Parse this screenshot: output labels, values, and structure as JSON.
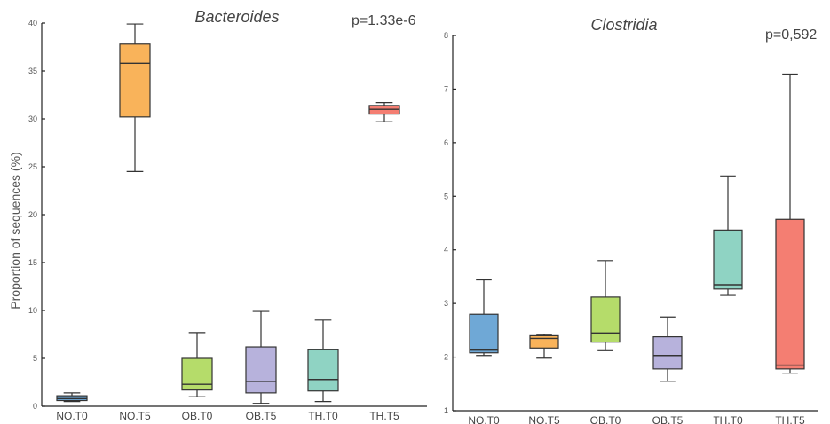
{
  "chart_data": [
    {
      "type": "box",
      "title": "Bacteroides",
      "annotation": "p=1.33e-6",
      "ylabel": "Proportion of sequences (%)",
      "ylim": [
        0,
        40
      ],
      "yticks": [
        0,
        5,
        10,
        15,
        20,
        25,
        30,
        35,
        40
      ],
      "categories": [
        "NO.T0",
        "NO.T5",
        "OB.T0",
        "OB.T5",
        "TH.T0",
        "TH.T5"
      ],
      "colors": [
        "#6fa8d6",
        "#f9b35a",
        "#b5dc6a",
        "#b7b2dc",
        "#8fd3c3",
        "#f47e72"
      ],
      "boxes": [
        {
          "min": 0.5,
          "q1": 0.6,
          "median": 0.8,
          "q3": 1.1,
          "max": 1.4
        },
        {
          "min": 24.5,
          "q1": 30.2,
          "median": 35.8,
          "q3": 37.8,
          "max": 39.9
        },
        {
          "min": 1.0,
          "q1": 1.7,
          "median": 2.3,
          "q3": 5.0,
          "max": 7.7
        },
        {
          "min": 0.3,
          "q1": 1.4,
          "median": 2.6,
          "q3": 6.2,
          "max": 9.9
        },
        {
          "min": 0.5,
          "q1": 1.6,
          "median": 2.8,
          "q3": 5.9,
          "max": 9.0
        },
        {
          "min": 29.7,
          "q1": 30.5,
          "median": 31.0,
          "q3": 31.4,
          "max": 31.7
        }
      ]
    },
    {
      "type": "box",
      "title": "Clostridia",
      "annotation": "p=0,592",
      "ylabel": "",
      "ylim": [
        1,
        8
      ],
      "yticks": [
        1,
        2,
        3,
        4,
        5,
        6,
        7,
        8
      ],
      "categories": [
        "NO.T0",
        "NO.T5",
        "OB.T0",
        "OB.T5",
        "TH.T0",
        "TH.T5"
      ],
      "colors": [
        "#6fa8d6",
        "#f9b35a",
        "#b5dc6a",
        "#b7b2dc",
        "#8fd3c3",
        "#f47e72"
      ],
      "boxes": [
        {
          "min": 2.03,
          "q1": 2.08,
          "median": 2.13,
          "q3": 2.8,
          "max": 3.44
        },
        {
          "min": 1.98,
          "q1": 2.17,
          "median": 2.35,
          "q3": 2.4,
          "max": 2.42
        },
        {
          "min": 2.12,
          "q1": 2.28,
          "median": 2.45,
          "q3": 3.12,
          "max": 3.8
        },
        {
          "min": 1.55,
          "q1": 1.78,
          "median": 2.03,
          "q3": 2.38,
          "max": 2.75
        },
        {
          "min": 3.15,
          "q1": 3.27,
          "median": 3.35,
          "q3": 4.37,
          "max": 5.38
        },
        {
          "min": 1.7,
          "q1": 1.78,
          "median": 1.85,
          "q3": 4.57,
          "max": 7.28
        }
      ]
    }
  ]
}
